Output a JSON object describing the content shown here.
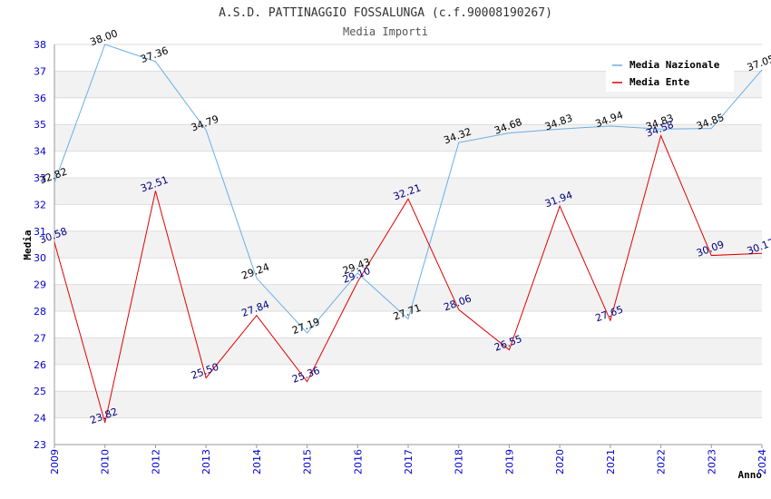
{
  "chart_data": {
    "type": "line",
    "title": "A.S.D. PATTINAGGIO FOSSALUNGA (c.f.90008190267)",
    "subtitle": "Media Importi",
    "xlabel": "Anno",
    "ylabel": "Media",
    "ylim": [
      23,
      38
    ],
    "yticks": [
      "23",
      "24",
      "25",
      "26",
      "27",
      "28",
      "29",
      "30",
      "31",
      "32",
      "33",
      "34",
      "35",
      "36",
      "37",
      "38"
    ],
    "categories": [
      "2009",
      "2010",
      "2012",
      "2013",
      "2014",
      "2015",
      "2016",
      "2017",
      "2018",
      "2019",
      "2020",
      "2021",
      "2022",
      "2023",
      "2024"
    ],
    "legend_position": "top-right",
    "series": [
      {
        "name": "Media Nazionale",
        "color": "#6aaee6",
        "label_color": "#000000",
        "values": [
          32.82,
          38.0,
          37.36,
          34.79,
          29.24,
          27.19,
          29.43,
          27.71,
          34.32,
          34.68,
          34.83,
          34.94,
          34.83,
          34.85,
          37.05
        ],
        "labels": [
          "32.82",
          "38.00",
          "37.36",
          "34.79",
          "29.24",
          "27.19",
          "29.43",
          "27.71",
          "34.32",
          "34.68",
          "34.83",
          "34.94",
          "34.83",
          "34.85",
          "37.05"
        ]
      },
      {
        "name": "Media Ente",
        "color": "#e00000",
        "label_color": "#000080",
        "values": [
          30.58,
          23.82,
          32.51,
          25.5,
          27.84,
          25.36,
          29.1,
          32.21,
          28.06,
          26.55,
          31.94,
          27.65,
          34.58,
          30.09,
          30.17
        ],
        "labels": [
          "30.58",
          "23.82",
          "32.51",
          "25.50",
          "27.84",
          "25.36",
          "29.10",
          "32.21",
          "28.06",
          "26.55",
          "31.94",
          "27.65",
          "34.58",
          "30.09",
          "30.17"
        ]
      }
    ]
  }
}
